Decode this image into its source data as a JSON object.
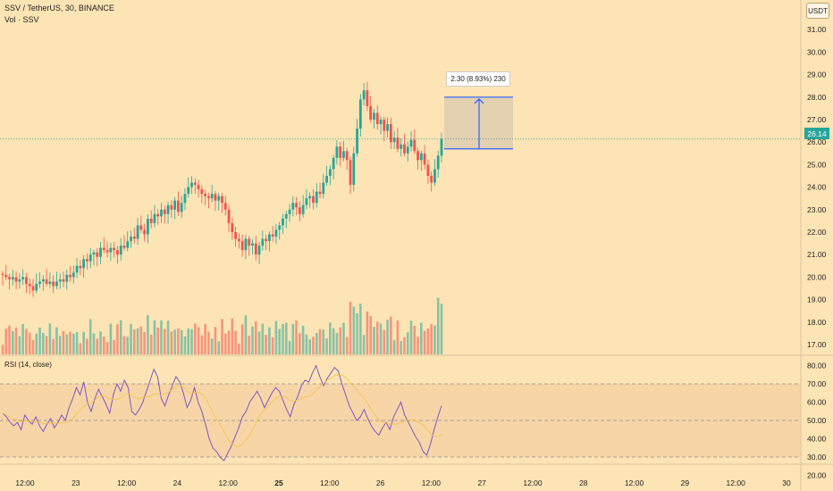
{
  "header": {
    "symbol": "SSV / TetherUS, 30, BINANCE",
    "volume_label": "Vol · SSV",
    "currency": "USDT"
  },
  "price_axis": {
    "ticks": [
      "31.00",
      "30.00",
      "29.00",
      "28.00",
      "27.00",
      "26.00",
      "25.00",
      "24.00",
      "23.00",
      "22.00",
      "21.00",
      "20.00",
      "19.00",
      "18.00",
      "17.00"
    ],
    "current_price": "26.14"
  },
  "measure": {
    "label": "2.30 (8.93%) 230"
  },
  "rsi": {
    "label": "RSI (14, close)",
    "ticks": [
      "80.00",
      "70.00",
      "60.00",
      "50.00",
      "40.00",
      "30.00",
      "20.00"
    ]
  },
  "time_axis": {
    "ticks": [
      "12:00",
      "23",
      "12:00",
      "24",
      "12:00",
      "25",
      "12:00",
      "26",
      "12:00",
      "27",
      "12:00",
      "28",
      "12:00",
      "29",
      "12:00",
      "30"
    ]
  },
  "chart_data": {
    "type": "candlestick",
    "symbol": "SSV / TetherUS",
    "interval": "30",
    "y_range": [
      16.3,
      31.5
    ],
    "rsi_range": [
      20,
      80
    ],
    "rsi_bands": [
      30,
      50,
      70
    ],
    "current_price": 26.14,
    "measure": {
      "from": 25.7,
      "to": 28.0,
      "change": 2.3,
      "percent": 8.93
    },
    "closes": [
      20.1,
      20.0,
      19.9,
      20.0,
      19.8,
      19.9,
      20.0,
      19.7,
      19.6,
      19.4,
      19.7,
      19.8,
      19.9,
      19.7,
      19.8,
      19.6,
      19.8,
      19.9,
      19.8,
      20.1,
      20.0,
      20.2,
      20.5,
      20.4,
      20.8,
      20.7,
      21.0,
      21.1,
      20.9,
      21.3,
      21.2,
      21.1,
      21.3,
      21.2,
      21.0,
      21.4,
      21.3,
      21.6,
      21.8,
      21.7,
      22.3,
      22.1,
      21.9,
      22.6,
      22.4,
      22.8,
      22.7,
      23.0,
      22.8,
      23.2,
      23.0,
      23.4,
      22.9,
      23.3,
      23.7,
      24.0,
      24.2,
      24.1,
      23.9,
      23.7,
      23.6,
      23.5,
      23.7,
      23.4,
      23.6,
      23.3,
      23.0,
      22.4,
      22.0,
      21.7,
      21.6,
      21.2,
      21.7,
      21.4,
      21.5,
      21.0,
      21.4,
      21.7,
      21.6,
      21.9,
      21.8,
      22.1,
      22.3,
      22.6,
      22.8,
      23.0,
      23.3,
      23.1,
      22.8,
      23.2,
      23.5,
      23.6,
      23.3,
      23.8,
      23.7,
      24.2,
      24.5,
      24.8,
      25.3,
      25.8,
      25.3,
      25.6,
      25.2,
      24.1,
      25.5,
      26.6,
      27.9,
      28.3,
      27.6,
      27.0,
      27.3,
      26.8,
      27.0,
      26.5,
      26.8,
      26.0,
      26.2,
      25.7,
      25.9,
      25.5,
      25.8,
      26.1,
      25.6,
      25.2,
      25.5,
      25.0,
      24.5,
      24.2,
      24.8,
      25.4,
      26.14
    ],
    "volume_max": 21,
    "rsi_closes": [
      54,
      52,
      49,
      47,
      49,
      45,
      53,
      50,
      48,
      52,
      47,
      44,
      48,
      51,
      46,
      49,
      53,
      50,
      57,
      62,
      68,
      64,
      71,
      60,
      55,
      62,
      67,
      63,
      59,
      54,
      64,
      70,
      66,
      72,
      68,
      55,
      53,
      56,
      60,
      66,
      72,
      78,
      74,
      62,
      58,
      64,
      69,
      74,
      71,
      65,
      57,
      61,
      68,
      60,
      55,
      48,
      40,
      35,
      33,
      30,
      28,
      32,
      36,
      41,
      46,
      52,
      55,
      60,
      63,
      66,
      62,
      57,
      61,
      65,
      68,
      66,
      61,
      56,
      52,
      59,
      63,
      69,
      72,
      71,
      76,
      80,
      74,
      69,
      73,
      76,
      79,
      77,
      70,
      64,
      58,
      54,
      50,
      52,
      56,
      51,
      47,
      44,
      42,
      46,
      49,
      45,
      52,
      56,
      60,
      53,
      49,
      45,
      41,
      38,
      33,
      31,
      37,
      45,
      52,
      58
    ]
  }
}
